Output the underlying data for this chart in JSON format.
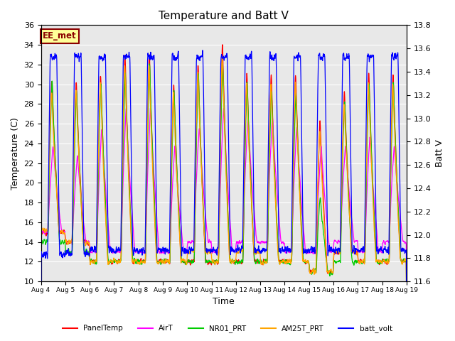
{
  "title": "Temperature and Batt V",
  "xlabel": "Time",
  "ylabel_left": "Temperature (C)",
  "ylabel_right": "Batt V",
  "ylim_left": [
    10,
    36
  ],
  "ylim_right": [
    11.6,
    13.8
  ],
  "x_tick_labels": [
    "Aug 4",
    "Aug 5",
    "Aug 6",
    "Aug 7",
    "Aug 8",
    "Aug 9",
    "Aug 10",
    "Aug 11",
    "Aug 12",
    "Aug 13",
    "Aug 14",
    "Aug 15",
    "Aug 16",
    "Aug 17",
    "Aug 18",
    "Aug 19"
  ],
  "annotation_text": "EE_met",
  "annotation_color": "#8B0000",
  "annotation_bg": "#FFFF99",
  "series": [
    {
      "name": "PanelTemp",
      "color": "#FF0000"
    },
    {
      "name": "AirT",
      "color": "#FF00FF"
    },
    {
      "name": "NR01_PRT",
      "color": "#00CC00"
    },
    {
      "name": "AM25T_PRT",
      "color": "#FFA500"
    },
    {
      "name": "batt_volt",
      "color": "#0000FF"
    }
  ],
  "legend_loc": "lower center",
  "title_fontsize": 11,
  "axis_fontsize": 9,
  "tick_fontsize": 8,
  "plot_bg": "#E8E8E8",
  "grid_color": "#FFFFFF",
  "num_days": 15,
  "points_per_day": 144,
  "left_yticks": [
    10,
    12,
    14,
    16,
    18,
    20,
    22,
    24,
    26,
    28,
    30,
    32,
    34,
    36
  ],
  "right_yticks": [
    11.6,
    11.8,
    12.0,
    12.2,
    12.4,
    12.6,
    12.8,
    13.0,
    13.2,
    13.4,
    13.6,
    13.8
  ]
}
